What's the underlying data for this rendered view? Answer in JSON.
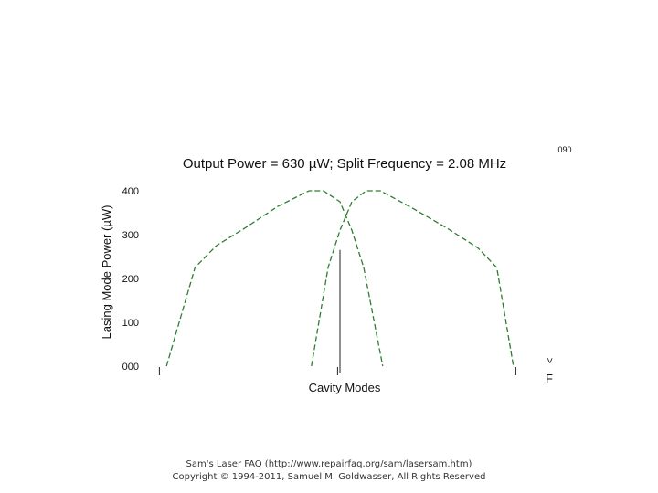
{
  "chart_data": {
    "type": "line",
    "title": "Output Power = 630 µW; Split Frequency = 2.08 MHz",
    "xlabel": "Cavity Modes",
    "ylabel": "Lasing Mode Power (µW)",
    "yticks": [
      "000",
      "100",
      "200",
      "300",
      "400"
    ],
    "ylim": [
      0,
      400
    ],
    "corner_label": "090",
    "side_label_top": ">",
    "side_label_bottom": "F",
    "marker_value": 265,
    "series_color": "#2e7d32",
    "series": [
      {
        "points": [
          [
            -3.65,
            0
          ],
          [
            -3.05,
            225
          ],
          [
            -2.6,
            275
          ],
          [
            -2.0,
            315
          ],
          [
            -1.3,
            365
          ],
          [
            -0.65,
            400
          ],
          [
            -0.35,
            400
          ],
          [
            0.0,
            375
          ],
          [
            0.25,
            310
          ],
          [
            0.5,
            225
          ],
          [
            0.9,
            0
          ]
        ]
      },
      {
        "points": [
          [
            -0.6,
            0
          ],
          [
            -0.25,
            225
          ],
          [
            0.0,
            310
          ],
          [
            0.25,
            375
          ],
          [
            0.55,
            400
          ],
          [
            0.85,
            400
          ],
          [
            1.45,
            365
          ],
          [
            2.25,
            315
          ],
          [
            2.9,
            270
          ],
          [
            3.3,
            225
          ],
          [
            3.65,
            0
          ]
        ]
      }
    ]
  },
  "footer": {
    "line1": "Sam's Laser FAQ (http://www.repairfaq.org/sam/lasersam.htm)",
    "line2": "Copyright © 1994-2011, Samuel M. Goldwasser, All Rights Reserved"
  }
}
